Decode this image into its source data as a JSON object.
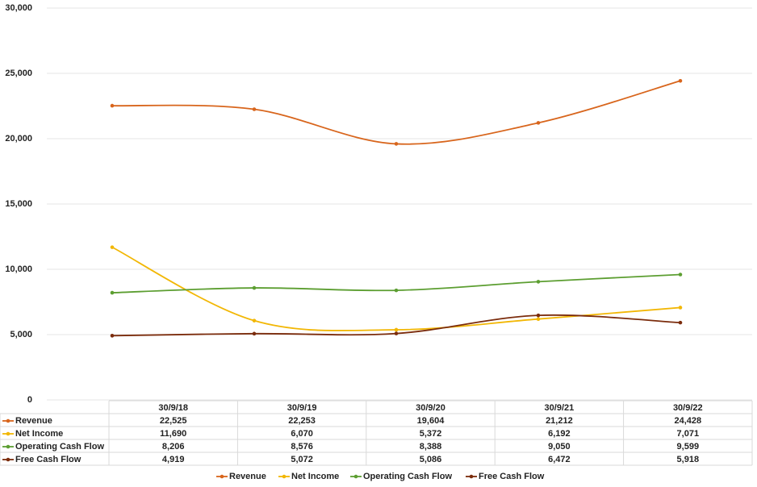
{
  "chart_data": {
    "type": "line",
    "categories": [
      "30/9/18",
      "30/9/19",
      "30/9/20",
      "30/9/21",
      "30/9/22"
    ],
    "series": [
      {
        "name": "Revenue",
        "color": "#d8651c",
        "values": [
          22525,
          22253,
          19604,
          21212,
          24428
        ],
        "value_labels": [
          "22,525",
          "22,253",
          "19,604",
          "21,212",
          "24,428"
        ]
      },
      {
        "name": "Net Income",
        "color": "#f2b705",
        "values": [
          11690,
          6070,
          5372,
          6192,
          7071
        ],
        "value_labels": [
          "11,690",
          "6,070",
          "5,372",
          "6,192",
          "7,071"
        ]
      },
      {
        "name": "Operating Cash Flow",
        "color": "#5c9e31",
        "values": [
          8206,
          8576,
          8388,
          9050,
          9599
        ],
        "value_labels": [
          "8,206",
          "8,576",
          "8,388",
          "9,050",
          "9,599"
        ]
      },
      {
        "name": "Free Cash Flow",
        "color": "#7b2c0c",
        "values": [
          4919,
          5072,
          5086,
          6472,
          5918
        ],
        "value_labels": [
          "4,919",
          "5,072",
          "5,086",
          "6,472",
          "5,918"
        ]
      }
    ],
    "ylim": [
      0,
      30000
    ],
    "yticks": [
      0,
      {
        "value": 5000,
        "label": "5,000"
      },
      {
        "value": 10000,
        "label": "10,000"
      },
      {
        "value": 15000,
        "label": "15,000"
      },
      {
        "value": 20000,
        "label": "20,000"
      },
      {
        "value": 25000,
        "label": "25,000"
      },
      {
        "value": 30000,
        "label": "30,000"
      }
    ],
    "grid": true,
    "smooth": true,
    "legend": "bottom",
    "data_table": true
  }
}
